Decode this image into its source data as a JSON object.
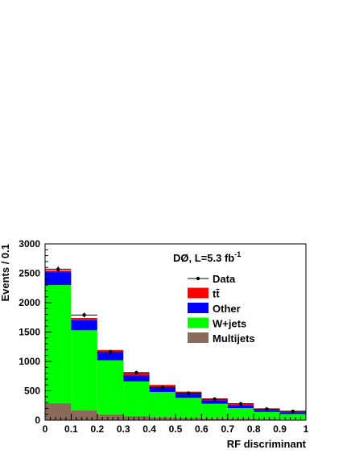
{
  "chart_data": {
    "type": "bar",
    "stacked": true,
    "xlabel": "RF discriminant",
    "ylabel": "Events / 0.1",
    "xlim": [
      0,
      1
    ],
    "ylim": [
      0,
      3000
    ],
    "x_ticks": [
      "0",
      "0.1",
      "0.2",
      "0.3",
      "0.4",
      "0.5",
      "0.6",
      "0.7",
      "0.8",
      "0.9",
      "1"
    ],
    "y_ticks": [
      "0",
      "500",
      "1000",
      "1500",
      "2000",
      "2500",
      "3000"
    ],
    "annotation": {
      "text": "DØ, L=5.3 fb",
      "superscript": "-1"
    },
    "bin_edges": [
      0,
      0.1,
      0.2,
      0.3,
      0.4,
      0.5,
      0.6,
      0.7,
      0.8,
      0.9,
      1.0
    ],
    "series": [
      {
        "name": "Multijets",
        "color": "#8b6a5a",
        "values": [
          290,
          170,
          100,
          70,
          50,
          40,
          30,
          25,
          20,
          15
        ]
      },
      {
        "name": "W+jets",
        "color": "#00ff00",
        "values": [
          2010,
          1360,
          920,
          590,
          430,
          340,
          250,
          180,
          120,
          90
        ]
      },
      {
        "name": "Other",
        "color": "#0000ff",
        "values": [
          220,
          170,
          130,
          100,
          80,
          70,
          55,
          50,
          35,
          30
        ]
      },
      {
        "name": "tt̄",
        "color": "#ff0000",
        "values": [
          30,
          40,
          45,
          45,
          40,
          35,
          35,
          30,
          25,
          25
        ]
      }
    ],
    "data": {
      "name": "Data",
      "values": [
        2570,
        1790,
        1160,
        810,
        560,
        460,
        360,
        280,
        190,
        150
      ]
    },
    "legend": {
      "placement": "top-right",
      "entries": [
        {
          "label": "Data",
          "style": "marker-line"
        },
        {
          "label": "tt̄",
          "style": "fill",
          "color": "#ff0000"
        },
        {
          "label": "Other",
          "style": "fill",
          "color": "#0000ff"
        },
        {
          "label": "W+jets",
          "style": "fill",
          "color": "#00ff00"
        },
        {
          "label": "Multijets",
          "style": "fill",
          "color": "#8b6a5a"
        }
      ]
    },
    "grid": false
  }
}
